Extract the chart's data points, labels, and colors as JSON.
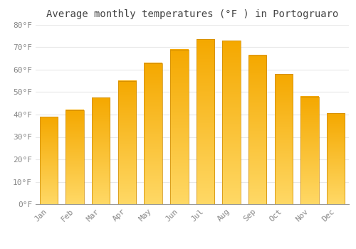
{
  "title": "Average monthly temperatures (°F ) in Portogruaro",
  "months": [
    "Jan",
    "Feb",
    "Mar",
    "Apr",
    "May",
    "Jun",
    "Jul",
    "Aug",
    "Sep",
    "Oct",
    "Nov",
    "Dec"
  ],
  "values": [
    39,
    42,
    47.5,
    55,
    63,
    69,
    73.5,
    73,
    66.5,
    58,
    48,
    40.5
  ],
  "bar_color_top": "#F5A800",
  "bar_color_bottom": "#FFD966",
  "bar_edge_color": "#CC8800",
  "background_color": "#FFFFFF",
  "grid_color": "#E8E8E8",
  "ylim": [
    0,
    80
  ],
  "yticks": [
    0,
    10,
    20,
    30,
    40,
    50,
    60,
    70,
    80
  ],
  "ylabel_suffix": "°F",
  "title_fontsize": 10,
  "tick_fontsize": 8,
  "tick_label_color": "#888888",
  "bar_width": 0.7
}
